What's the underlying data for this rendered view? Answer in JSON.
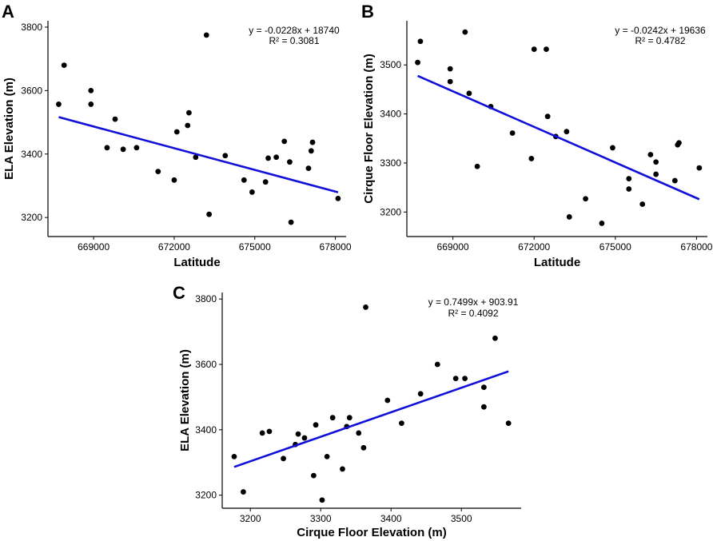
{
  "chart_data": [
    {
      "id": "A",
      "panel_label": "A",
      "type": "scatter",
      "xlabel": "Latitude",
      "ylabel": "ELA Elevation (m)",
      "xlim": [
        667300,
        678400
      ],
      "ylim": [
        3140,
        3820
      ],
      "xticks": [
        669000,
        672000,
        675000,
        678000
      ],
      "xtick_labels": [
        "669000",
        "672000",
        "675000",
        "678000"
      ],
      "yticks": [
        3200,
        3400,
        3600,
        3800
      ],
      "ytick_labels": [
        "3200",
        "3400",
        "3600",
        "3800"
      ],
      "equation": "y = -0.0228x + 18740",
      "r_squared": "R² = 0.3081",
      "fit": {
        "slope": -0.0228,
        "intercept": 18740,
        "x_range": [
          667700,
          678100
        ]
      },
      "color": "#1010d8",
      "points": [
        [
          667700,
          3557
        ],
        [
          667900,
          3680
        ],
        [
          668900,
          3600
        ],
        [
          668900,
          3557
        ],
        [
          669500,
          3420
        ],
        [
          669800,
          3510
        ],
        [
          670100,
          3415
        ],
        [
          670600,
          3420
        ],
        [
          671400,
          3345
        ],
        [
          672000,
          3318
        ],
        [
          672100,
          3470
        ],
        [
          672500,
          3490
        ],
        [
          672550,
          3530
        ],
        [
          672800,
          3390
        ],
        [
          673200,
          3775
        ],
        [
          673300,
          3210
        ],
        [
          673900,
          3395
        ],
        [
          674600,
          3318
        ],
        [
          674900,
          3280
        ],
        [
          675400,
          3312
        ],
        [
          675500,
          3387
        ],
        [
          675800,
          3390
        ],
        [
          676100,
          3440
        ],
        [
          676300,
          3375
        ],
        [
          676350,
          3185
        ],
        [
          677000,
          3355
        ],
        [
          677100,
          3410
        ],
        [
          677150,
          3437
        ],
        [
          678100,
          3260
        ]
      ]
    },
    {
      "id": "B",
      "panel_label": "B",
      "type": "scatter",
      "xlabel": "Latitude",
      "ylabel": "Cirque Floor Elevation (m)",
      "xlim": [
        667300,
        678400
      ],
      "ylim": [
        3150,
        3590
      ],
      "xticks": [
        669000,
        672000,
        675000,
        678000
      ],
      "xtick_labels": [
        "669000",
        "672000",
        "675000",
        "678000"
      ],
      "yticks": [
        3200,
        3300,
        3400,
        3500
      ],
      "ytick_labels": [
        "3200",
        "3300",
        "3400",
        "3500"
      ],
      "equation": "y = -0.0242x + 19636",
      "r_squared": "R² = 0.4782",
      "fit": {
        "slope": -0.0242,
        "intercept": 19636,
        "x_range": [
          667700,
          678100
        ]
      },
      "color": "#1010d8",
      "points": [
        [
          667700,
          3505
        ],
        [
          667800,
          3548
        ],
        [
          668900,
          3492
        ],
        [
          668900,
          3466
        ],
        [
          669450,
          3567
        ],
        [
          669600,
          3442
        ],
        [
          669900,
          3293
        ],
        [
          670400,
          3415
        ],
        [
          671200,
          3361
        ],
        [
          671900,
          3309
        ],
        [
          672000,
          3532
        ],
        [
          672450,
          3532
        ],
        [
          672500,
          3395
        ],
        [
          672800,
          3354
        ],
        [
          673200,
          3364
        ],
        [
          673300,
          3190
        ],
        [
          673900,
          3227
        ],
        [
          674500,
          3177
        ],
        [
          674900,
          3331
        ],
        [
          675500,
          3268
        ],
        [
          675500,
          3247
        ],
        [
          676000,
          3216
        ],
        [
          676300,
          3317
        ],
        [
          676500,
          3277
        ],
        [
          676500,
          3302
        ],
        [
          677200,
          3264
        ],
        [
          677300,
          3337
        ],
        [
          677350,
          3341
        ],
        [
          678100,
          3290
        ]
      ]
    },
    {
      "id": "C",
      "panel_label": "C",
      "type": "scatter",
      "xlabel": "Cirque Floor Elevation (m)",
      "ylabel": "ELA Elevation (m)",
      "xlim": [
        3160,
        3585
      ],
      "ylim": [
        3160,
        3820
      ],
      "xticks": [
        3200,
        3300,
        3400,
        3500
      ],
      "xtick_labels": [
        "3200",
        "3300",
        "3400",
        "3500"
      ],
      "yticks": [
        3200,
        3400,
        3600,
        3800
      ],
      "ytick_labels": [
        "3200",
        "3400",
        "3600",
        "3800"
      ],
      "equation": "y = 0.7499x + 903.91",
      "r_squared": "R² = 0.4092",
      "fit": {
        "slope": 0.7499,
        "intercept": 903.91,
        "x_range": [
          3177,
          3567
        ]
      },
      "color": "#1010d8",
      "points": [
        [
          3177,
          3318
        ],
        [
          3190,
          3210
        ],
        [
          3217,
          3390
        ],
        [
          3227,
          3395
        ],
        [
          3247,
          3312
        ],
        [
          3264,
          3355
        ],
        [
          3268,
          3387
        ],
        [
          3277,
          3375
        ],
        [
          3290,
          3260
        ],
        [
          3293,
          3415
        ],
        [
          3302,
          3185
        ],
        [
          3309,
          3318
        ],
        [
          3317,
          3437
        ],
        [
          3331,
          3280
        ],
        [
          3337,
          3410
        ],
        [
          3341,
          3437
        ],
        [
          3354,
          3390
        ],
        [
          3361,
          3345
        ],
        [
          3364,
          3775
        ],
        [
          3395,
          3490
        ],
        [
          3415,
          3420
        ],
        [
          3442,
          3510
        ],
        [
          3466,
          3600
        ],
        [
          3492,
          3557
        ],
        [
          3505,
          3557
        ],
        [
          3532,
          3530
        ],
        [
          3532,
          3470
        ],
        [
          3548,
          3680
        ],
        [
          3567,
          3420
        ]
      ]
    }
  ]
}
